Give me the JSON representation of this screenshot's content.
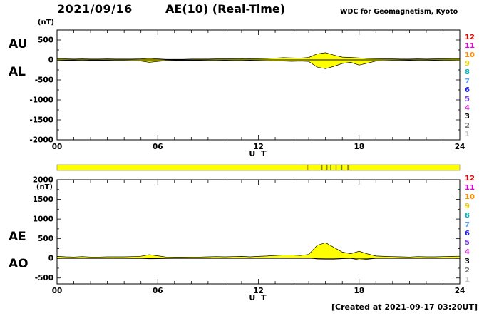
{
  "header": {
    "date": "2021/09/16",
    "title": "AE(10) (Real-Time)",
    "source": "WDC for Geomagnetism, Kyoto"
  },
  "footer": {
    "created": "[Created at 2021-09-17 03:20UT]"
  },
  "panel_labels": {
    "au": "AU",
    "al": "AL",
    "ae": "AE",
    "ao": "AO"
  },
  "axis": {
    "unit": "(nT)",
    "xlabel": "U T"
  },
  "station_legend": {
    "values": [
      12,
      11,
      10,
      9,
      8,
      7,
      6,
      5,
      4,
      3,
      2,
      1
    ],
    "colors": [
      "#e60000",
      "#e600e6",
      "#ff8c00",
      "#e6d200",
      "#00b4b4",
      "#5aa0ff",
      "#1e1eff",
      "#7840e6",
      "#d23cd2",
      "#000000",
      "#787878",
      "#c8c8c8"
    ]
  },
  "availability_bar": {
    "base_color": "#ffff00",
    "segments": [
      {
        "start": 14.9,
        "end": 14.97,
        "color": "#c8a000"
      },
      {
        "start": 15.72,
        "end": 15.82,
        "color": "#968c00"
      },
      {
        "start": 16.05,
        "end": 16.12,
        "color": "#968c00"
      },
      {
        "start": 16.28,
        "end": 16.34,
        "color": "#6e8c00"
      },
      {
        "start": 16.6,
        "end": 16.66,
        "color": "#968c00"
      },
      {
        "start": 16.92,
        "end": 17.0,
        "color": "#6e8c00"
      },
      {
        "start": 17.3,
        "end": 17.42,
        "color": "#968c00"
      }
    ]
  },
  "chart_data": [
    {
      "type": "area",
      "name": "AU / AL panel",
      "ylabel": "(nT)",
      "xlabel": "U T",
      "ylim": [
        -2000,
        750
      ],
      "yticks": [
        500,
        0,
        -500,
        -1000,
        -1500,
        -2000
      ],
      "xticks": [
        0,
        6,
        12,
        18,
        24
      ],
      "xtick_labels": [
        "00",
        "06",
        "12",
        "18",
        "24"
      ],
      "x_step_hours": 0.5,
      "series": [
        {
          "name": "AU",
          "fill": "#ffff00",
          "values": [
            30,
            25,
            20,
            25,
            20,
            20,
            25,
            20,
            20,
            20,
            25,
            35,
            25,
            15,
            15,
            15,
            20,
            20,
            20,
            25,
            25,
            25,
            30,
            25,
            30,
            35,
            45,
            55,
            50,
            45,
            60,
            150,
            180,
            120,
            70,
            60,
            50,
            35,
            30,
            25,
            25,
            20,
            20,
            25,
            20,
            25,
            25,
            30,
            30
          ]
        },
        {
          "name": "AL",
          "fill": "#ffff00",
          "values": [
            -20,
            -15,
            -15,
            -20,
            -15,
            -15,
            -15,
            -20,
            -20,
            -25,
            -30,
            -60,
            -40,
            -20,
            -15,
            -15,
            -15,
            -15,
            -20,
            -20,
            -15,
            -20,
            -20,
            -15,
            -20,
            -25,
            -30,
            -30,
            -35,
            -30,
            -40,
            -180,
            -220,
            -160,
            -90,
            -60,
            -130,
            -80,
            -30,
            -25,
            -20,
            -20,
            -15,
            -20,
            -20,
            -15,
            -20,
            -20,
            -25
          ]
        }
      ]
    },
    {
      "type": "area",
      "name": "AE / AO panel",
      "ylabel": "(nT)",
      "xlabel": "U T",
      "ylim": [
        -650,
        2000
      ],
      "yticks": [
        2000,
        1500,
        1000,
        500,
        0,
        -500
      ],
      "xticks": [
        0,
        6,
        12,
        18,
        24
      ],
      "xtick_labels": [
        "00",
        "06",
        "12",
        "18",
        "24"
      ],
      "x_step_hours": 0.5,
      "series": [
        {
          "name": "AE",
          "fill": "#ffff00",
          "values": [
            50,
            40,
            35,
            45,
            35,
            35,
            40,
            40,
            40,
            45,
            55,
            95,
            65,
            35,
            30,
            30,
            35,
            35,
            40,
            45,
            40,
            45,
            50,
            40,
            50,
            60,
            75,
            85,
            85,
            75,
            100,
            330,
            400,
            280,
            160,
            120,
            180,
            115,
            60,
            50,
            45,
            40,
            35,
            45,
            40,
            40,
            45,
            50,
            55
          ]
        },
        {
          "name": "AO",
          "fill": "#ffff00",
          "values": [
            5,
            5,
            2,
            2,
            2,
            2,
            5,
            0,
            0,
            -2,
            -2,
            -12,
            -8,
            -2,
            0,
            0,
            2,
            2,
            0,
            2,
            5,
            2,
            5,
            5,
            5,
            5,
            8,
            12,
            8,
            8,
            10,
            -15,
            -20,
            -20,
            -10,
            0,
            -40,
            -22,
            0,
            0,
            2,
            0,
            2,
            2,
            0,
            5,
            2,
            5,
            2
          ]
        }
      ]
    }
  ]
}
